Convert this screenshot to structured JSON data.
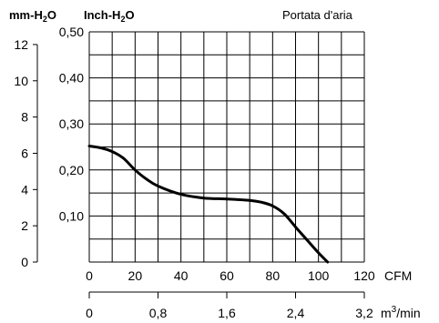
{
  "chart_data": {
    "type": "line",
    "title": "Portata d'aria",
    "left_axis_unit": "mm-H",
    "left_axis_unit_sub": "2",
    "left_axis_unit_end": "O",
    "inner_axis_unit": "Inch-H",
    "inner_axis_unit_sub": "2",
    "inner_axis_unit_end": "O",
    "x_primary_unit": "CFM",
    "x_secondary_unit_prefix": "m",
    "x_secondary_unit_sup": "3",
    "x_secondary_unit_suffix": "/min",
    "x_range_cfm": [
      0,
      120
    ],
    "y_range_inch_h2o": [
      0,
      0.5
    ],
    "y_mm_ticks": [
      {
        "value": 0,
        "label": "0"
      },
      {
        "value": 2,
        "label": "2"
      },
      {
        "value": 4,
        "label": "4"
      },
      {
        "value": 6,
        "label": "6"
      },
      {
        "value": 8,
        "label": "8"
      },
      {
        "value": 10,
        "label": "10"
      },
      {
        "value": 12,
        "label": "12"
      }
    ],
    "y_inch_ticks": [
      {
        "value": 0.1,
        "label": "0,10"
      },
      {
        "value": 0.2,
        "label": "0,20"
      },
      {
        "value": 0.3,
        "label": "0,30"
      },
      {
        "value": 0.4,
        "label": "0,40"
      },
      {
        "value": 0.5,
        "label": "0,50"
      }
    ],
    "x_cfm_ticks": [
      {
        "value": 0,
        "label": "0"
      },
      {
        "value": 20,
        "label": "20"
      },
      {
        "value": 40,
        "label": "40"
      },
      {
        "value": 60,
        "label": "60"
      },
      {
        "value": 80,
        "label": "80"
      },
      {
        "value": 100,
        "label": "100"
      },
      {
        "value": 120,
        "label": "120"
      }
    ],
    "x_m3_ticks": [
      {
        "value": 0,
        "label": "0"
      },
      {
        "value": 0.8,
        "label": "0,8"
      },
      {
        "value": 1.6,
        "label": "1,6"
      },
      {
        "value": 2.4,
        "label": "2,4"
      },
      {
        "value": 3.2,
        "label": "3,2"
      }
    ],
    "series": [
      {
        "x": [
          0,
          5,
          10,
          15,
          20,
          25,
          30,
          40,
          50,
          60,
          70,
          75,
          80,
          85,
          90,
          95,
          100,
          104
        ],
        "y": [
          0.252,
          0.248,
          0.24,
          0.225,
          0.2,
          0.18,
          0.165,
          0.147,
          0.139,
          0.137,
          0.134,
          0.13,
          0.122,
          0.105,
          0.076,
          0.048,
          0.02,
          0
        ]
      }
    ],
    "grid": true,
    "minor_grid_inch": 0.05,
    "minor_grid_cfm": 10
  }
}
